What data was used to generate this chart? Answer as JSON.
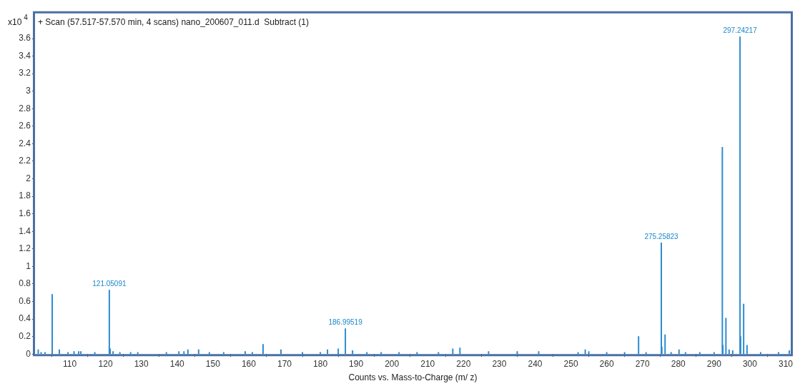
{
  "chart_data": {
    "type": "bar",
    "title": "+ Scan (57.517-57.570 min, 4 scans) nano_200607_011.d  Subtract (1)",
    "xlabel": "Counts vs. Mass-to-Charge (m/ z)",
    "ylabel": "x10$^{4}$",
    "series": [
      {
        "color": "#2a8ad0",
        "x": [
          101.2,
          102.0,
          103.1,
          105.1,
          107.1,
          109.5,
          111.2,
          112.5,
          113.1,
          117.0,
          121.05,
          121.3,
          122.1,
          124.0,
          127.0,
          129.0,
          137.0,
          140.5,
          141.9,
          143.0,
          146.0,
          149.0,
          153.0,
          159.0,
          161.0,
          164.0,
          169.0,
          175.0,
          180.0,
          182.0,
          185.0,
          186.995,
          189.0,
          193.0,
          197.0,
          202.0,
          207.0,
          213.0,
          217.0,
          219.0,
          227.0,
          235.0,
          241.0,
          252.0,
          254.0,
          255.0,
          260.0,
          265.0,
          268.9,
          271.0,
          275.258,
          275.4,
          276.3,
          278.0,
          280.2,
          282.0,
          286.0,
          290.0,
          292.3,
          292.45,
          293.3,
          294.2,
          295.2,
          297.242,
          297.4,
          298.25,
          299.2,
          303.0,
          308.0,
          311.0
        ],
        "values": [
          0.05,
          0.02,
          0.02,
          0.68,
          0.05,
          0.02,
          0.03,
          0.03,
          0.03,
          0.02,
          0.73,
          0.06,
          0.03,
          0.02,
          0.02,
          0.02,
          0.02,
          0.03,
          0.03,
          0.05,
          0.05,
          0.02,
          0.02,
          0.03,
          0.02,
          0.11,
          0.05,
          0.02,
          0.02,
          0.05,
          0.06,
          0.29,
          0.04,
          0.02,
          0.02,
          0.02,
          0.02,
          0.02,
          0.06,
          0.07,
          0.03,
          0.03,
          0.03,
          0.02,
          0.05,
          0.03,
          0.02,
          0.02,
          0.2,
          0.02,
          1.27,
          0.08,
          0.22,
          0.02,
          0.05,
          0.02,
          0.02,
          0.02,
          2.36,
          0.1,
          0.41,
          0.05,
          0.04,
          3.62,
          0.2,
          0.57,
          0.1,
          0.02,
          0.02,
          0.04
        ]
      }
    ],
    "xlim": [
      100.3,
      311.4
    ],
    "xticks": [
      110,
      120,
      130,
      140,
      150,
      160,
      170,
      180,
      190,
      200,
      210,
      220,
      230,
      240,
      250,
      260,
      270,
      280,
      290,
      300,
      310
    ],
    "ylim": [
      0,
      3.9
    ],
    "yticks": [
      0,
      0.2,
      0.4,
      0.6,
      0.8,
      1,
      1.2,
      1.4,
      1.6,
      1.8,
      2,
      2.2,
      2.4,
      2.6,
      2.8,
      3,
      3.2,
      3.4,
      3.6
    ],
    "annotations": [
      {
        "text": "121.05091",
        "x": 121.05,
        "y": 0.73
      },
      {
        "text": "186.99519",
        "x": 186.995,
        "y": 0.29
      },
      {
        "text": "275.25823",
        "x": 275.258,
        "y": 1.27
      },
      {
        "text": "297.24217",
        "x": 297.242,
        "y": 3.62
      }
    ]
  }
}
